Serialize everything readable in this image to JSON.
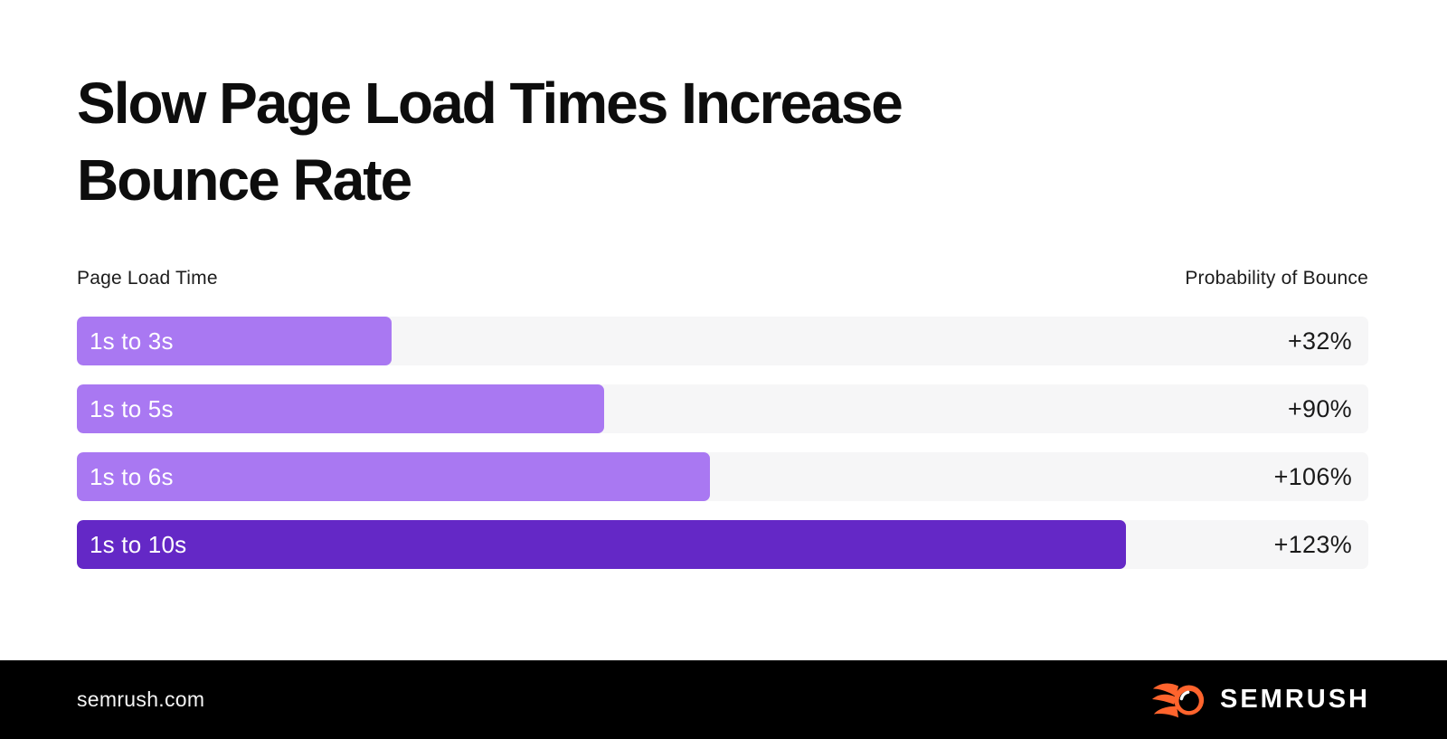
{
  "title": "Slow Page Load Times Increase Bounce Rate",
  "chart_data": {
    "type": "bar",
    "orientation": "horizontal",
    "title": "Slow Page Load Times Increase Bounce Rate",
    "left_header": "Page Load Time",
    "right_header": "Probability of Bounce",
    "categories": [
      "1s to 3s",
      "1s to 5s",
      "1s to 6s",
      "1s to 10s"
    ],
    "load_time_seconds": [
      3,
      5,
      6,
      10
    ],
    "bounce_increase_pct": [
      32,
      90,
      106,
      123
    ],
    "value_labels": [
      "+32%",
      "+90%",
      "+106%",
      "+123%"
    ],
    "bar_width_pct_of_track": [
      24.4,
      40.8,
      49.0,
      81.2
    ],
    "bar_colors": [
      "#a978f2",
      "#a978f2",
      "#a978f2",
      "#6428c6"
    ],
    "track_color": "#f6f6f7",
    "legend": "none",
    "gridlines": false
  },
  "footer": {
    "url": "semrush.com",
    "brand": "SEMRUSH",
    "background": "#000000",
    "logo_orange": "#ff642d"
  },
  "colors": {
    "background": "#ffffff",
    "title_text": "#0d0d0d",
    "value_text": "#1a1a1a",
    "light_purple": "#a978f2",
    "dark_purple": "#6428c6",
    "track_gray": "#f6f6f7"
  }
}
